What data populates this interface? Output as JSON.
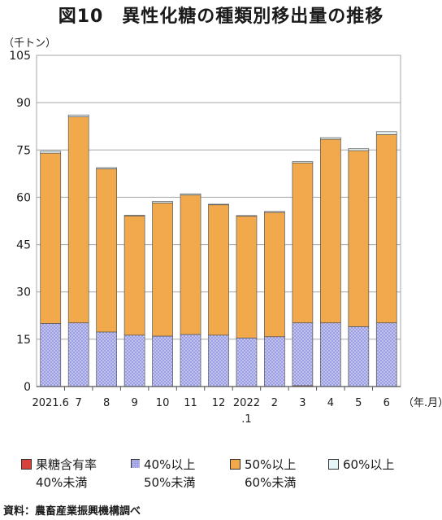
{
  "title": "図10　異性化糖の種類別移出量の推移",
  "unit_label": "（千トン）",
  "source": "資料：農畜産業振興機構調べ",
  "colors": {
    "s1": "#d9413b",
    "s2": "#9c9ee3",
    "s3": "#f2a94b",
    "s4": "#e6f5f7",
    "grid": "#a6a6a6",
    "axis": "#555555"
  },
  "legend": [
    {
      "line1": "果糖含有率",
      "line2": "40%未満"
    },
    {
      "line1": "40%以上",
      "line2": "50%未満"
    },
    {
      "line1": "50%以上",
      "line2": "60%未満"
    },
    {
      "line1": "60%以上",
      "line2": ""
    }
  ],
  "chart_data": {
    "type": "bar",
    "stacked": true,
    "title": "図10　異性化糖の種類別移出量の推移",
    "ylabel": "（千トン）",
    "xlabel": "（年.月）",
    "ylim": [
      0,
      105
    ],
    "yticks": [
      0,
      15,
      30,
      45,
      60,
      75,
      90,
      105
    ],
    "grid": true,
    "legend_position": "bottom",
    "categories": [
      "2021.6",
      "7",
      "8",
      "9",
      "10",
      "11",
      "12",
      "2022\n.1",
      "2",
      "3",
      "4",
      "5",
      "6"
    ],
    "series": [
      {
        "name": "果糖含有率40%未満",
        "values": [
          0.0,
          0.0,
          0.0,
          0.0,
          0.0,
          0.0,
          0.0,
          0.0,
          0.0,
          0.3,
          0.0,
          0.0,
          0.0
        ]
      },
      {
        "name": "40%以上50%未満",
        "values": [
          20.0,
          20.2,
          17.3,
          16.3,
          16.0,
          16.5,
          16.3,
          15.4,
          15.8,
          19.9,
          20.2,
          19.0,
          20.2
        ]
      },
      {
        "name": "50%以上60%未満",
        "values": [
          54.0,
          65.3,
          51.7,
          37.8,
          42.2,
          44.2,
          41.3,
          38.6,
          39.4,
          50.7,
          58.2,
          55.8,
          59.7
        ]
      },
      {
        "name": "60%以上",
        "values": [
          0.6,
          0.6,
          0.4,
          0.2,
          0.5,
          0.4,
          0.2,
          0.2,
          0.3,
          0.4,
          0.5,
          0.6,
          0.9
        ]
      }
    ]
  }
}
